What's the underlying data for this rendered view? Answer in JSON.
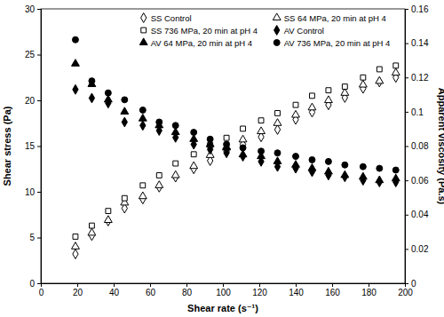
{
  "chart_data": {
    "type": "scatter",
    "x_label": "Shear rate (s⁻¹)",
    "y_label": "Shear stress (Pa)",
    "y2_label": "Apparent  viscosity (Pa.s)",
    "x": [
      19,
      28,
      37,
      46,
      56,
      65,
      74,
      84,
      93,
      102,
      111,
      121,
      130,
      140,
      149,
      158,
      167,
      177,
      186,
      195
    ],
    "xlim": [
      0,
      200
    ],
    "xticks": [
      0,
      20,
      40,
      60,
      80,
      100,
      120,
      140,
      160,
      180,
      200
    ],
    "ylim": [
      0,
      30
    ],
    "yticks": [
      0,
      5,
      10,
      15,
      20,
      25,
      30
    ],
    "y2lim": [
      0,
      0.16
    ],
    "y2ticks": [
      0,
      0.02,
      0.04,
      0.06,
      0.08,
      0.1,
      0.12,
      0.14,
      0.16
    ],
    "grid": false,
    "legend": "top",
    "series": [
      {
        "name": "SS Control",
        "color": "#000000",
        "marker": "open-diamond",
        "values": [
          3.2,
          5.2,
          6.8,
          8.2,
          9.2,
          10.5,
          11.6,
          12.5,
          13.4,
          14.4,
          15.2,
          16.0,
          16.8,
          17.9,
          18.7,
          19.5,
          20.3,
          21.3,
          22.0,
          22.5
        ]
      },
      {
        "name": "SS 64 MPa, 20 min at pH 4",
        "color": "#000000",
        "marker": "open-triangle",
        "values": [
          4.0,
          5.5,
          6.9,
          8.8,
          9.5,
          10.7,
          11.8,
          12.8,
          14.0,
          14.9,
          15.7,
          16.6,
          17.5,
          18.4,
          19.2,
          20.0,
          20.8,
          21.7,
          22.1,
          23.0
        ]
      },
      {
        "name": "SS 736 MPa, 20 min at pH 4",
        "color": "#000000",
        "marker": "open-square",
        "values": [
          5.1,
          6.3,
          7.9,
          9.3,
          10.7,
          11.8,
          13.1,
          14.1,
          15.1,
          15.9,
          16.9,
          17.8,
          18.6,
          19.5,
          20.5,
          21.1,
          21.5,
          22.5,
          23.4,
          23.8
        ]
      },
      {
        "name": "AV Control",
        "color": "#000000",
        "marker": "diamond",
        "axis": "y2",
        "values": [
          0.113,
          0.108,
          0.105,
          0.094,
          0.092,
          0.089,
          0.085,
          0.081,
          0.078,
          0.076,
          0.074,
          0.071,
          0.068,
          0.067,
          0.065,
          0.063,
          0.062,
          0.06,
          0.059,
          0.059
        ]
      },
      {
        "name": "AV 64 MPa, 20 min at pH 4",
        "color": "#000000",
        "marker": "triangle",
        "axis": "y2",
        "values": [
          0.128,
          0.116,
          0.107,
          0.1,
          0.096,
          0.092,
          0.088,
          0.084,
          0.081,
          0.079,
          0.075,
          0.074,
          0.071,
          0.069,
          0.067,
          0.065,
          0.063,
          0.062,
          0.06,
          0.061
        ]
      },
      {
        "name": "AV 736 MPa, 20 min at pH 4",
        "color": "#000000",
        "marker": "circle",
        "axis": "y2",
        "values": [
          0.142,
          0.118,
          0.111,
          0.107,
          0.101,
          0.094,
          0.092,
          0.088,
          0.084,
          0.081,
          0.079,
          0.077,
          0.076,
          0.074,
          0.072,
          0.071,
          0.069,
          0.068,
          0.067,
          0.066
        ]
      }
    ]
  }
}
